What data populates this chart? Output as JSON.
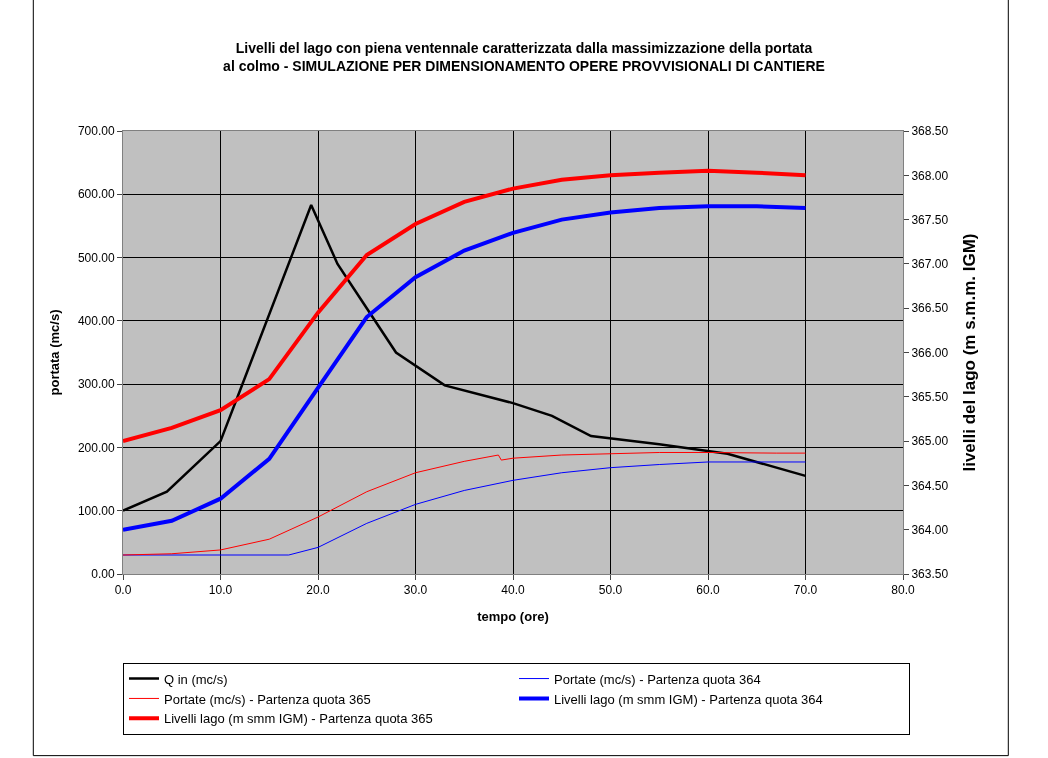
{
  "chart_data": {
    "type": "line",
    "title": "Livelli del lago con piena ventennale caratterizzata dalla massimizzazione della portata\nal colmo - SIMULAZIONE PER DIMENSIONAMENTO OPERE PROVVISIONALI DI CANTIERE",
    "xlabel": "tempo (ore)",
    "ylabel": "portata (mc/s)",
    "y2label": "livelli del lago (m s.m.m. IGM)",
    "xlim": [
      0,
      80
    ],
    "xticks": [
      {
        "value": 0,
        "label": "0.0"
      },
      {
        "value": 10,
        "label": "10.0"
      },
      {
        "value": 20,
        "label": "20.0"
      },
      {
        "value": 30,
        "label": "30.0"
      },
      {
        "value": 40,
        "label": "40.0"
      },
      {
        "value": 50,
        "label": "50.0"
      },
      {
        "value": 60,
        "label": "60.0"
      },
      {
        "value": 70,
        "label": "70.0"
      },
      {
        "value": 80,
        "label": "80.0"
      }
    ],
    "ylim": [
      0,
      700
    ],
    "yticks": [
      {
        "value": 0,
        "label": "0.00"
      },
      {
        "value": 100,
        "label": "100.00"
      },
      {
        "value": 200,
        "label": "200.00"
      },
      {
        "value": 300,
        "label": "300.00"
      },
      {
        "value": 400,
        "label": "400.00"
      },
      {
        "value": 500,
        "label": "500.00"
      },
      {
        "value": 600,
        "label": "600.00"
      },
      {
        "value": 700,
        "label": "700.00"
      }
    ],
    "y2lim": [
      363.5,
      368.5
    ],
    "y2ticks": [
      {
        "value": 363.5,
        "label": "363.50"
      },
      {
        "value": 364,
        "label": "364.00"
      },
      {
        "value": 364.5,
        "label": "364.50"
      },
      {
        "value": 365,
        "label": "365.00"
      },
      {
        "value": 365.5,
        "label": "365.50"
      },
      {
        "value": 366,
        "label": "366.00"
      },
      {
        "value": 366.5,
        "label": "366.50"
      },
      {
        "value": 367,
        "label": "367.00"
      },
      {
        "value": 367.5,
        "label": "367.50"
      },
      {
        "value": 368,
        "label": "368.00"
      },
      {
        "value": 368.5,
        "label": "368.50"
      }
    ],
    "grid": true,
    "legend": "bottom",
    "marker": "none",
    "series": [
      {
        "name": "Q in (mc/s)",
        "color": "#000000",
        "x": [
          0,
          4.5,
          10,
          12,
          19.3,
          22,
          25,
          28,
          33,
          40,
          44,
          48,
          55,
          62,
          70
        ],
        "values": [
          100,
          130,
          210,
          290,
          583,
          490,
          420,
          350,
          298,
          270,
          250,
          218,
          205,
          190,
          155
        ]
      },
      {
        "name": "Portate (mc/s) - Partenza quota 364",
        "color": "#0000ff",
        "x": [
          0,
          17,
          20,
          25,
          30,
          35,
          40,
          45,
          50,
          55,
          60,
          70
        ],
        "values": [
          30,
          30,
          42,
          80,
          110,
          132,
          148,
          160,
          168,
          173,
          177,
          177
        ]
      },
      {
        "name": "Portate (mc/s) - Partenza quota 365",
        "color": "#ff0000",
        "x": [
          0,
          5,
          10,
          15,
          20,
          25,
          30,
          35,
          38.5,
          38.8,
          40,
          45,
          50,
          55,
          60,
          67,
          70
        ],
        "values": [
          30,
          32,
          38,
          55,
          90,
          130,
          160,
          178,
          188,
          180,
          183,
          188,
          190,
          192,
          192,
          191,
          191
        ]
      },
      {
        "name": "Livelli lago (m smm IGM) - Partenza quota 364",
        "color": "#0000ff",
        "axis": "y2",
        "x": [
          0,
          5,
          10,
          15,
          20,
          25,
          30,
          35,
          40,
          45,
          50,
          55,
          60,
          65,
          70
        ],
        "values": [
          364.0,
          364.1,
          364.35,
          364.8,
          365.6,
          366.4,
          366.85,
          367.15,
          367.35,
          367.5,
          367.58,
          367.63,
          367.65,
          367.65,
          367.63
        ]
      },
      {
        "name": "Livelli lago (m smm IGM) - Partenza quota 365",
        "color": "#ff0000",
        "axis": "y2",
        "x": [
          0,
          5,
          10,
          15,
          20,
          25,
          30,
          35,
          40,
          45,
          50,
          55,
          60,
          65,
          70
        ],
        "values": [
          365.0,
          365.15,
          365.35,
          365.7,
          366.45,
          367.1,
          367.45,
          367.7,
          367.85,
          367.95,
          368.0,
          368.03,
          368.05,
          368.03,
          368.0
        ]
      }
    ]
  }
}
